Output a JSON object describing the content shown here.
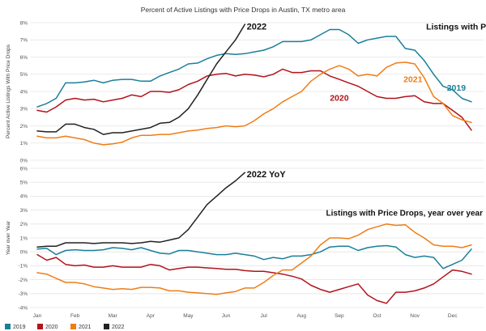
{
  "chart_data": {
    "type": "line",
    "title": "Percent of Active Listings with Price Drops in Austin, TX metro area",
    "colors": {
      "2019": "#1a7f9a",
      "2020": "#b3121b",
      "2021": "#ef7d16",
      "2022": "#222222",
      "grid": "#e4e4e4"
    },
    "months": [
      "Jan",
      "Feb",
      "Mar",
      "Apr",
      "May",
      "Jun",
      "Jul",
      "Aug",
      "Sep",
      "Oct",
      "Nov",
      "Dec"
    ],
    "legend": [
      "2019",
      "2020",
      "2021",
      "2022"
    ],
    "panels": [
      {
        "id": "top",
        "ylabel": "Percent Active Listings With Price Drops",
        "ylim": [
          0,
          8
        ],
        "yticks": [
          0,
          1,
          2,
          3,
          4,
          5,
          6,
          7,
          8
        ],
        "ytick_labels": [
          "0%",
          "1%",
          "2%",
          "3%",
          "4%",
          "5%",
          "6%",
          "7%",
          "8%"
        ],
        "annotations": [
          {
            "id": "title",
            "text": "Listings with Price Drops",
            "x": 10.3,
            "y": 7.6,
            "color": "#111111",
            "size": 10.5,
            "weight": "bold"
          },
          {
            "id": "2022",
            "text": "2022",
            "x": 5.55,
            "y": 7.6,
            "color": "#111111",
            "size": 11,
            "weight": "bold"
          },
          {
            "id": "2021",
            "text": "2021",
            "x": 9.7,
            "y": 4.55,
            "color": "#ef7d16",
            "size": 10.5,
            "weight": "bold"
          },
          {
            "id": "2020",
            "text": "2020",
            "x": 7.75,
            "y": 3.45,
            "color": "#b3121b",
            "size": 10.5,
            "weight": "bold"
          },
          {
            "id": "2019",
            "text": "2019",
            "x": 10.85,
            "y": 4.05,
            "color": "#1a7f9a",
            "size": 10.5,
            "weight": "bold"
          }
        ],
        "series": [
          {
            "name": "2019",
            "x": [
              0,
              0.25,
              0.5,
              0.75,
              1,
              1.25,
              1.5,
              1.75,
              2,
              2.25,
              2.5,
              2.75,
              3,
              3.25,
              3.5,
              3.75,
              4,
              4.25,
              4.5,
              4.75,
              5,
              5.25,
              5.5,
              5.75,
              6,
              6.25,
              6.5,
              6.75,
              7,
              7.25,
              7.5,
              7.75,
              8,
              8.25,
              8.5,
              8.75,
              9,
              9.25,
              9.5,
              9.75,
              10,
              10.25,
              10.5,
              10.75,
              11,
              11.25,
              11.5
            ],
            "values": [
              3.1,
              3.3,
              3.6,
              4.5,
              4.5,
              4.55,
              4.65,
              4.5,
              4.65,
              4.7,
              4.7,
              4.6,
              4.6,
              4.9,
              5.1,
              5.3,
              5.6,
              5.65,
              5.9,
              6.1,
              6.2,
              6.15,
              6.2,
              6.3,
              6.4,
              6.6,
              6.9,
              6.9,
              6.9,
              7.0,
              7.3,
              7.6,
              7.6,
              7.3,
              6.8,
              7.0,
              7.1,
              7.2,
              7.2,
              6.5,
              6.4,
              5.8,
              5.0,
              4.3,
              4.1,
              3.6,
              3.4
            ]
          },
          {
            "name": "2020",
            "x": [
              0,
              0.25,
              0.5,
              0.75,
              1,
              1.25,
              1.5,
              1.75,
              2,
              2.25,
              2.5,
              2.75,
              3,
              3.25,
              3.5,
              3.75,
              4,
              4.25,
              4.5,
              4.75,
              5,
              5.25,
              5.5,
              5.75,
              6,
              6.25,
              6.5,
              6.75,
              7,
              7.25,
              7.5,
              7.75,
              8,
              8.25,
              8.5,
              8.75,
              9,
              9.25,
              9.5,
              9.75,
              10,
              10.25,
              10.5,
              10.75,
              11,
              11.25,
              11.5
            ],
            "values": [
              2.9,
              2.8,
              3.1,
              3.5,
              3.6,
              3.5,
              3.55,
              3.4,
              3.5,
              3.6,
              3.8,
              3.7,
              4.0,
              4.0,
              3.95,
              4.1,
              4.4,
              4.6,
              4.9,
              5.0,
              5.05,
              4.9,
              5.0,
              4.95,
              4.85,
              5.0,
              5.3,
              5.1,
              5.1,
              5.2,
              5.2,
              4.9,
              4.7,
              4.5,
              4.3,
              4.0,
              3.7,
              3.6,
              3.6,
              3.7,
              3.75,
              3.4,
              3.3,
              3.3,
              2.9,
              2.5,
              1.75
            ]
          },
          {
            "name": "2021",
            "x": [
              0,
              0.25,
              0.5,
              0.75,
              1,
              1.25,
              1.5,
              1.75,
              2,
              2.25,
              2.5,
              2.75,
              3,
              3.25,
              3.5,
              3.75,
              4,
              4.25,
              4.5,
              4.75,
              5,
              5.25,
              5.5,
              5.75,
              6,
              6.25,
              6.5,
              6.75,
              7,
              7.25,
              7.5,
              7.75,
              8,
              8.25,
              8.5,
              8.75,
              9,
              9.25,
              9.5,
              9.75,
              10,
              10.25,
              10.5,
              10.75,
              11,
              11.25,
              11.5
            ],
            "values": [
              1.4,
              1.3,
              1.3,
              1.4,
              1.3,
              1.2,
              1.0,
              0.9,
              0.95,
              1.05,
              1.3,
              1.45,
              1.45,
              1.5,
              1.5,
              1.6,
              1.7,
              1.75,
              1.85,
              1.9,
              2.0,
              1.95,
              2.0,
              2.3,
              2.7,
              3.0,
              3.4,
              3.7,
              4.0,
              4.6,
              5.0,
              5.3,
              5.5,
              5.3,
              4.9,
              5.0,
              4.9,
              5.4,
              5.65,
              5.7,
              5.6,
              4.8,
              3.7,
              3.3,
              2.6,
              2.35,
              2.2
            ]
          },
          {
            "name": "2022",
            "x": [
              0,
              0.25,
              0.5,
              0.75,
              1,
              1.25,
              1.5,
              1.75,
              2,
              2.25,
              2.5,
              2.75,
              3,
              3.25,
              3.5,
              3.75,
              4,
              4.25,
              4.5,
              4.75,
              5,
              5.25,
              5.5
            ],
            "values": [
              1.7,
              1.65,
              1.65,
              2.1,
              2.1,
              1.9,
              1.8,
              1.5,
              1.6,
              1.6,
              1.7,
              1.8,
              1.9,
              2.15,
              2.2,
              2.5,
              3.0,
              3.8,
              4.7,
              5.6,
              6.3,
              7.0,
              7.9
            ]
          }
        ]
      },
      {
        "id": "bottom",
        "ylabel": "Year over Year",
        "ylim": [
          -4,
          6
        ],
        "yticks": [
          -4,
          -3,
          -2,
          -1,
          0,
          1,
          2,
          3,
          4,
          5,
          6
        ],
        "ytick_labels": [
          "-4%",
          "-3%",
          "-2%",
          "-1%",
          "0%",
          "1%",
          "2%",
          "3%",
          "4%",
          "5%",
          "6%"
        ],
        "annotations": [
          {
            "id": "yoy-title",
            "text": "Listings with Price Drops, year over year",
            "x": 7.65,
            "y": 2.6,
            "color": "#111111",
            "size": 10,
            "weight": "bold"
          },
          {
            "id": "2022-yoy",
            "text": "2022 YoY",
            "x": 5.55,
            "y": 5.35,
            "color": "#111111",
            "size": 11,
            "weight": "bold"
          }
        ],
        "series": [
          {
            "name": "2019",
            "x": [
              0,
              0.25,
              0.5,
              0.75,
              1,
              1.25,
              1.5,
              1.75,
              2,
              2.25,
              2.5,
              2.75,
              3,
              3.25,
              3.5,
              3.75,
              4,
              4.25,
              4.5,
              4.75,
              5,
              5.25,
              5.5,
              5.75,
              6,
              6.25,
              6.5,
              6.75,
              7,
              7.25,
              7.5,
              7.75,
              8,
              8.25,
              8.5,
              8.75,
              9,
              9.25,
              9.5,
              9.75,
              10,
              10.25,
              10.5,
              10.75,
              11,
              11.25,
              11.5
            ],
            "values": [
              0.2,
              0.25,
              -0.2,
              0.1,
              0.15,
              0.1,
              0.1,
              0.15,
              0.3,
              0.25,
              0.15,
              0.3,
              0.1,
              -0.1,
              -0.15,
              0.1,
              0.1,
              0.0,
              -0.1,
              -0.2,
              -0.2,
              -0.1,
              -0.2,
              -0.3,
              -0.55,
              -0.4,
              -0.5,
              -0.3,
              -0.3,
              -0.2,
              0.0,
              0.35,
              0.4,
              0.4,
              0.1,
              0.3,
              0.4,
              0.45,
              0.35,
              -0.2,
              -0.4,
              -0.3,
              -0.4,
              -1.2,
              -0.9,
              -0.6,
              0.2
            ]
          },
          {
            "name": "2020",
            "x": [
              0,
              0.25,
              0.5,
              0.75,
              1,
              1.25,
              1.5,
              1.75,
              2,
              2.25,
              2.5,
              2.75,
              3,
              3.25,
              3.5,
              3.75,
              4,
              4.25,
              4.5,
              4.75,
              5,
              5.25,
              5.5,
              5.75,
              6,
              6.25,
              6.5,
              6.75,
              7,
              7.25,
              7.5,
              7.75,
              8,
              8.25,
              8.5,
              8.75,
              9,
              9.25,
              9.5,
              9.75,
              10,
              10.25,
              10.5,
              10.75,
              11,
              11.25,
              11.5
            ],
            "values": [
              -0.2,
              -0.6,
              -0.4,
              -0.9,
              -1.0,
              -0.95,
              -1.1,
              -1.1,
              -1.0,
              -1.1,
              -1.1,
              -1.1,
              -0.9,
              -1.0,
              -1.3,
              -1.2,
              -1.1,
              -1.1,
              -1.15,
              -1.2,
              -1.25,
              -1.25,
              -1.35,
              -1.4,
              -1.4,
              -1.5,
              -1.6,
              -1.75,
              -1.95,
              -2.4,
              -2.7,
              -2.9,
              -2.7,
              -2.5,
              -2.3,
              -3.1,
              -3.5,
              -3.7,
              -2.9,
              -2.9,
              -2.8,
              -2.6,
              -2.3,
              -1.8,
              -1.3,
              -1.4,
              -1.6
            ]
          },
          {
            "name": "2021",
            "x": [
              0,
              0.25,
              0.5,
              0.75,
              1,
              1.25,
              1.5,
              1.75,
              2,
              2.25,
              2.5,
              2.75,
              3,
              3.25,
              3.5,
              3.75,
              4,
              4.25,
              4.5,
              4.75,
              5,
              5.25,
              5.5,
              5.75,
              6,
              6.25,
              6.5,
              6.75,
              7,
              7.25,
              7.5,
              7.75,
              8,
              8.25,
              8.5,
              8.75,
              9,
              9.25,
              9.5,
              9.75,
              10,
              10.25,
              10.5,
              10.75,
              11,
              11.25,
              11.5
            ],
            "values": [
              -1.5,
              -1.6,
              -1.9,
              -2.2,
              -2.2,
              -2.3,
              -2.5,
              -2.6,
              -2.7,
              -2.65,
              -2.7,
              -2.55,
              -2.55,
              -2.6,
              -2.8,
              -2.8,
              -2.9,
              -2.95,
              -3.0,
              -3.05,
              -2.95,
              -2.85,
              -2.6,
              -2.6,
              -2.2,
              -1.7,
              -1.3,
              -1.3,
              -0.8,
              -0.3,
              0.5,
              1.0,
              1.0,
              0.95,
              1.2,
              1.6,
              1.8,
              2.0,
              1.9,
              1.95,
              1.4,
              1.0,
              0.5,
              0.4,
              0.4,
              0.3,
              0.5
            ]
          },
          {
            "name": "2022",
            "x": [
              0,
              0.25,
              0.5,
              0.75,
              1,
              1.25,
              1.5,
              1.75,
              2,
              2.25,
              2.5,
              2.75,
              3,
              3.25,
              3.5,
              3.75,
              4,
              4.25,
              4.5,
              4.75,
              5,
              5.25,
              5.5
            ],
            "values": [
              0.35,
              0.4,
              0.4,
              0.65,
              0.65,
              0.65,
              0.6,
              0.65,
              0.65,
              0.65,
              0.6,
              0.65,
              0.75,
              0.7,
              0.85,
              1.0,
              1.6,
              2.5,
              3.4,
              4.0,
              4.6,
              5.1,
              5.7
            ]
          }
        ]
      }
    ]
  }
}
